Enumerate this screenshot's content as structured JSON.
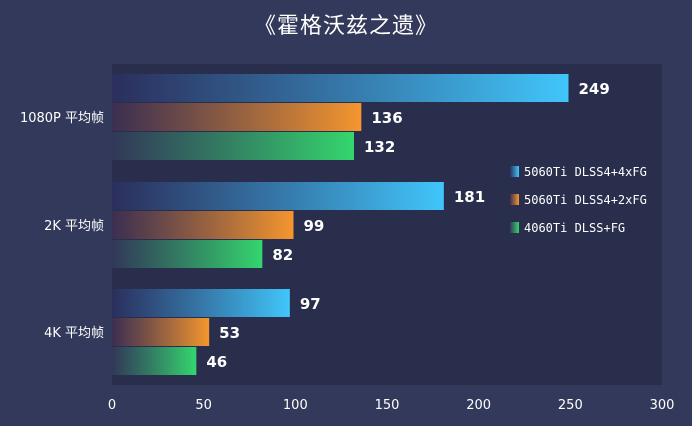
{
  "chart_data": {
    "type": "bar",
    "orientation": "horizontal",
    "title": "《霍格沃兹之遗》",
    "categories": [
      "1080P 平均帧",
      "2K 平均帧",
      "4K 平均帧"
    ],
    "series": [
      {
        "name": "5060Ti DLSS4+4xFG",
        "values": [
          249,
          181,
          97
        ],
        "color": "#41c6fb",
        "gradient_start": "#2b2f5e"
      },
      {
        "name": "5060Ti DLSS4+2xFG",
        "values": [
          136,
          99,
          53
        ],
        "color": "#f5962e",
        "gradient_start": "#3d2f52"
      },
      {
        "name": "4060Ti DLSS+FG",
        "values": [
          132,
          82,
          46
        ],
        "color": "#34d66e",
        "gradient_start": "#33395a"
      }
    ],
    "xlim": [
      0,
      300
    ],
    "xticks": [
      0,
      50,
      100,
      150,
      200,
      250,
      300
    ],
    "grid": false,
    "legend_position": "right",
    "colors": {
      "background": "#33395a",
      "plot_background": "#292e4c",
      "text": "#ffffff"
    }
  }
}
